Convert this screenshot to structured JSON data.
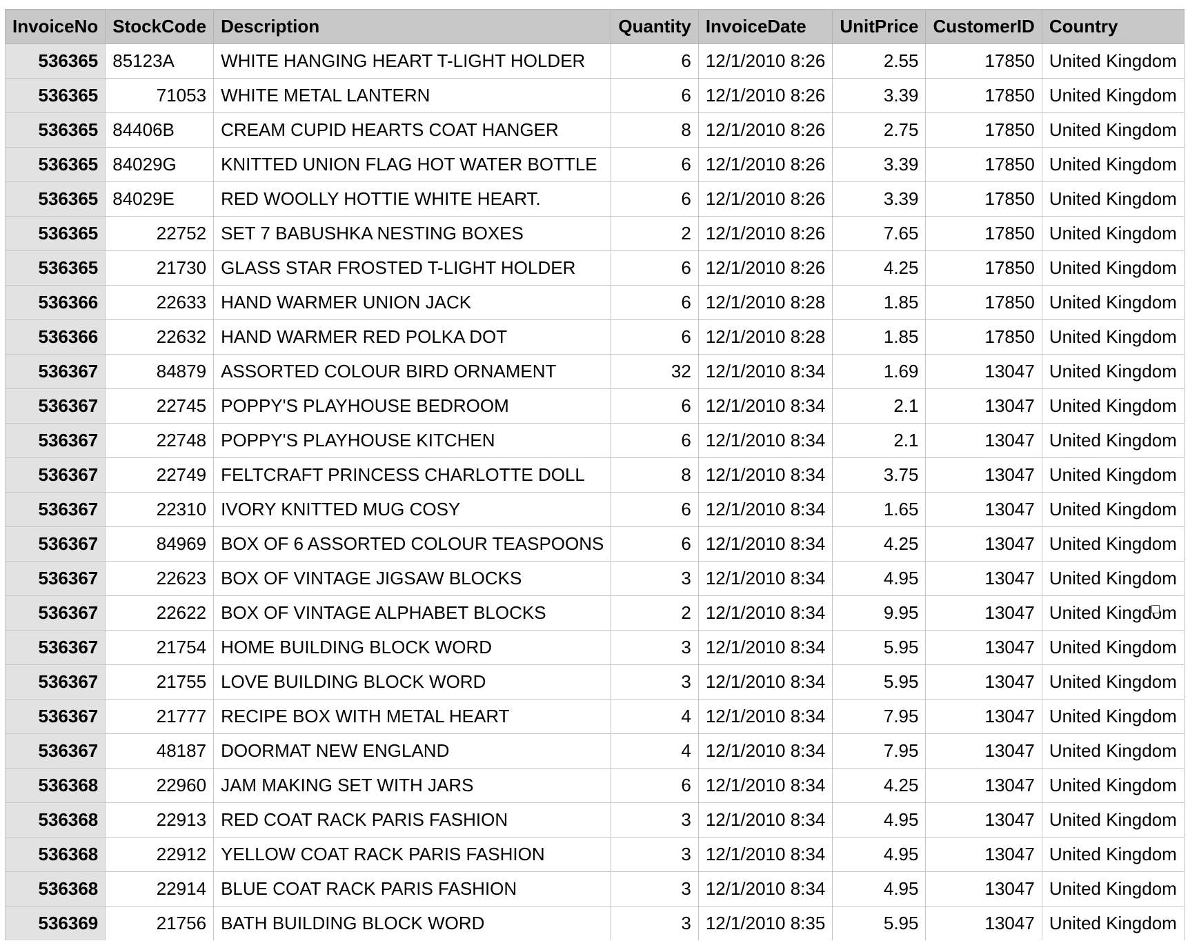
{
  "columns": [
    "InvoiceNo",
    "StockCode",
    "Description",
    "Quantity",
    "InvoiceDate",
    "UnitPrice",
    "CustomerID",
    "Country"
  ],
  "rows": [
    [
      "536365",
      "85123A",
      "WHITE HANGING HEART T-LIGHT HOLDER",
      "6",
      "12/1/2010 8:26",
      "2.55",
      "17850",
      "United Kingdom"
    ],
    [
      "536365",
      "71053",
      "WHITE METAL LANTERN",
      "6",
      "12/1/2010 8:26",
      "3.39",
      "17850",
      "United Kingdom"
    ],
    [
      "536365",
      "84406B",
      "CREAM CUPID HEARTS COAT HANGER",
      "8",
      "12/1/2010 8:26",
      "2.75",
      "17850",
      "United Kingdom"
    ],
    [
      "536365",
      "84029G",
      "KNITTED UNION FLAG HOT WATER BOTTLE",
      "6",
      "12/1/2010 8:26",
      "3.39",
      "17850",
      "United Kingdom"
    ],
    [
      "536365",
      "84029E",
      "RED WOOLLY HOTTIE WHITE HEART.",
      "6",
      "12/1/2010 8:26",
      "3.39",
      "17850",
      "United Kingdom"
    ],
    [
      "536365",
      "22752",
      "SET 7 BABUSHKA NESTING BOXES",
      "2",
      "12/1/2010 8:26",
      "7.65",
      "17850",
      "United Kingdom"
    ],
    [
      "536365",
      "21730",
      "GLASS STAR FROSTED T-LIGHT HOLDER",
      "6",
      "12/1/2010 8:26",
      "4.25",
      "17850",
      "United Kingdom"
    ],
    [
      "536366",
      "22633",
      "HAND WARMER UNION JACK",
      "6",
      "12/1/2010 8:28",
      "1.85",
      "17850",
      "United Kingdom"
    ],
    [
      "536366",
      "22632",
      "HAND WARMER RED POLKA DOT",
      "6",
      "12/1/2010 8:28",
      "1.85",
      "17850",
      "United Kingdom"
    ],
    [
      "536367",
      "84879",
      "ASSORTED COLOUR BIRD ORNAMENT",
      "32",
      "12/1/2010 8:34",
      "1.69",
      "13047",
      "United Kingdom"
    ],
    [
      "536367",
      "22745",
      "POPPY'S PLAYHOUSE BEDROOM",
      "6",
      "12/1/2010 8:34",
      "2.1",
      "13047",
      "United Kingdom"
    ],
    [
      "536367",
      "22748",
      "POPPY'S PLAYHOUSE KITCHEN",
      "6",
      "12/1/2010 8:34",
      "2.1",
      "13047",
      "United Kingdom"
    ],
    [
      "536367",
      "22749",
      "FELTCRAFT PRINCESS CHARLOTTE DOLL",
      "8",
      "12/1/2010 8:34",
      "3.75",
      "13047",
      "United Kingdom"
    ],
    [
      "536367",
      "22310",
      "IVORY KNITTED MUG COSY",
      "6",
      "12/1/2010 8:34",
      "1.65",
      "13047",
      "United Kingdom"
    ],
    [
      "536367",
      "84969",
      "BOX OF 6 ASSORTED COLOUR TEASPOONS",
      "6",
      "12/1/2010 8:34",
      "4.25",
      "13047",
      "United Kingdom"
    ],
    [
      "536367",
      "22623",
      "BOX OF VINTAGE JIGSAW BLOCKS",
      "3",
      "12/1/2010 8:34",
      "4.95",
      "13047",
      "United Kingdom"
    ],
    [
      "536367",
      "22622",
      "BOX OF VINTAGE ALPHABET BLOCKS",
      "2",
      "12/1/2010 8:34",
      "9.95",
      "13047",
      "United Kingdom"
    ],
    [
      "536367",
      "21754",
      "HOME BUILDING BLOCK WORD",
      "3",
      "12/1/2010 8:34",
      "5.95",
      "13047",
      "United Kingdom"
    ],
    [
      "536367",
      "21755",
      "LOVE BUILDING BLOCK WORD",
      "3",
      "12/1/2010 8:34",
      "5.95",
      "13047",
      "United Kingdom"
    ],
    [
      "536367",
      "21777",
      "RECIPE BOX WITH METAL HEART",
      "4",
      "12/1/2010 8:34",
      "7.95",
      "13047",
      "United Kingdom"
    ],
    [
      "536367",
      "48187",
      "DOORMAT NEW ENGLAND",
      "4",
      "12/1/2010 8:34",
      "7.95",
      "13047",
      "United Kingdom"
    ],
    [
      "536368",
      "22960",
      "JAM MAKING SET WITH JARS",
      "6",
      "12/1/2010 8:34",
      "4.25",
      "13047",
      "United Kingdom"
    ],
    [
      "536368",
      "22913",
      "RED COAT RACK PARIS FASHION",
      "3",
      "12/1/2010 8:34",
      "4.95",
      "13047",
      "United Kingdom"
    ],
    [
      "536368",
      "22912",
      "YELLOW COAT RACK PARIS FASHION",
      "3",
      "12/1/2010 8:34",
      "4.95",
      "13047",
      "United Kingdom"
    ],
    [
      "536368",
      "22914",
      "BLUE COAT RACK PARIS FASHION",
      "3",
      "12/1/2010 8:34",
      "4.95",
      "13047",
      "United Kingdom"
    ],
    [
      "536369",
      "21756",
      "BATH BUILDING BLOCK WORD",
      "3",
      "12/1/2010 8:35",
      "5.95",
      "13047",
      "United Kingdom"
    ]
  ],
  "colors": {
    "header_bg": "#c8c8c8",
    "header_column_bg": "#e2e2e2",
    "grid_line": "#c6c6c6"
  }
}
